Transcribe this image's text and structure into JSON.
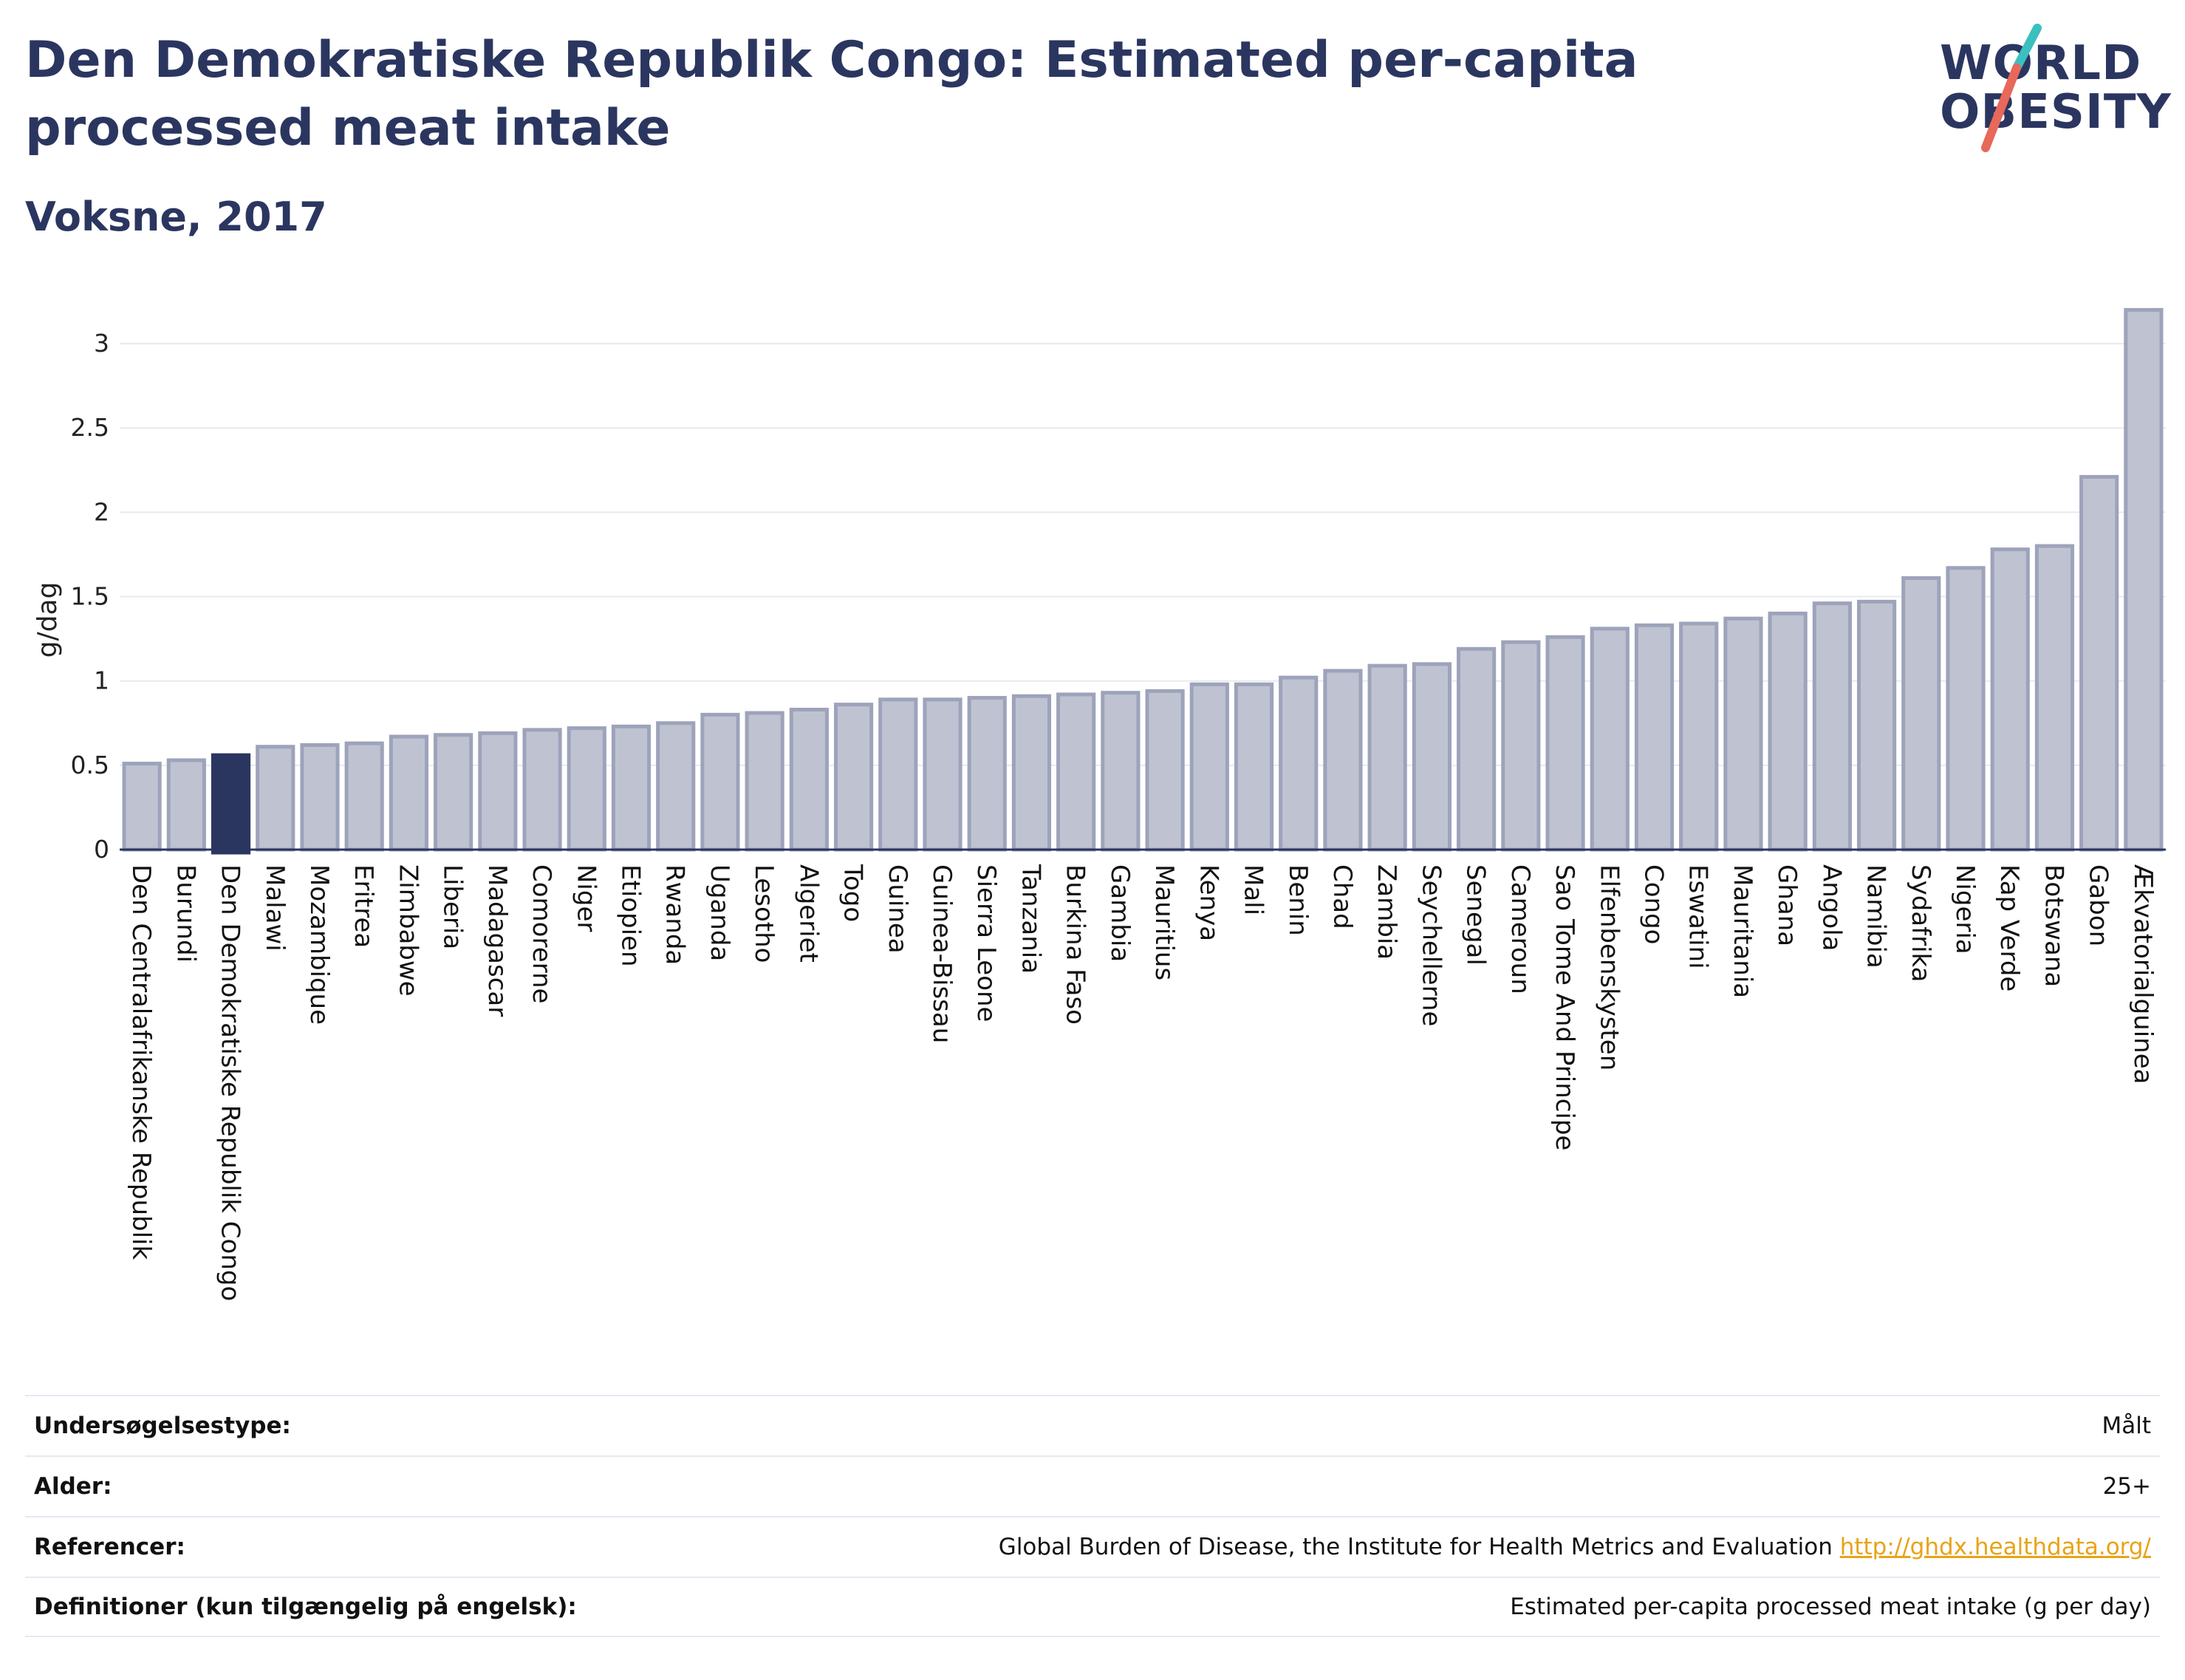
{
  "header": {
    "title": "Den Demokratiske Republik Congo: Estimated per-capita processed meat intake",
    "subtitle": "Voksne, 2017"
  },
  "logo": {
    "line1": "WORLD",
    "line2": "OBESITY",
    "accent_teal": "#3bbfbf",
    "accent_coral": "#e8685a"
  },
  "colors": {
    "bar": "#bfc3d1",
    "bar_border": "#9da3ba",
    "highlight": "#2b3660",
    "grid": "#e8eaf0"
  },
  "chart_data": {
    "type": "bar",
    "ylabel": "g/dag",
    "ylim": [
      0,
      3.25
    ],
    "yticks": [
      0,
      0.5,
      1,
      1.5,
      2,
      2.5,
      3
    ],
    "ytick_labels": [
      "0",
      "0.5",
      "1",
      "1.5",
      "2",
      "2.5",
      "3"
    ],
    "highlight": "Den Demokratiske Republik Congo",
    "categories": [
      "Den Centralafrikanske Republik",
      "Burundi",
      "Den Demokratiske Republik Congo",
      "Malawi",
      "Mozambique",
      "Eritrea",
      "Zimbabwe",
      "Liberia",
      "Madagascar",
      "Comorerne",
      "Niger",
      "Etiopien",
      "Rwanda",
      "Uganda",
      "Lesotho",
      "Algeriet",
      "Togo",
      "Guinea",
      "Guinea-Bissau",
      "Sierra Leone",
      "Tanzania",
      "Burkina Faso",
      "Gambia",
      "Mauritius",
      "Kenya",
      "Mali",
      "Benin",
      "Chad",
      "Zambia",
      "Seychellerne",
      "Senegal",
      "Cameroun",
      "Sao Tome And Principe",
      "Elfenbenskysten",
      "Congo",
      "Eswatini",
      "Mauritania",
      "Ghana",
      "Angola",
      "Namibia",
      "Sydafrika",
      "Nigeria",
      "Kap Verde",
      "Botswana",
      "Gabon",
      "Ækvatorialguinea"
    ],
    "values": [
      0.51,
      0.53,
      0.56,
      0.61,
      0.62,
      0.63,
      0.67,
      0.68,
      0.69,
      0.71,
      0.72,
      0.73,
      0.75,
      0.8,
      0.81,
      0.83,
      0.86,
      0.89,
      0.89,
      0.9,
      0.91,
      0.92,
      0.93,
      0.94,
      0.98,
      0.98,
      1.02,
      1.06,
      1.09,
      1.1,
      1.19,
      1.23,
      1.26,
      1.31,
      1.33,
      1.34,
      1.37,
      1.4,
      1.46,
      1.47,
      1.61,
      1.67,
      1.78,
      1.8,
      2.21,
      3.2
    ],
    "grid": true
  },
  "info": {
    "rows": [
      {
        "label": "Undersøgelsestype:",
        "value": "Målt"
      },
      {
        "label": "Alder:",
        "value": "25+"
      },
      {
        "label": "Referencer:",
        "value": "Global Burden of Disease, the Institute for Health Metrics and Evaluation",
        "link": "http://ghdx.healthdata.org/"
      },
      {
        "label": "Definitioner (kun tilgængelig på engelsk):",
        "value": "Estimated per-capita processed meat intake (g per day)"
      }
    ]
  }
}
